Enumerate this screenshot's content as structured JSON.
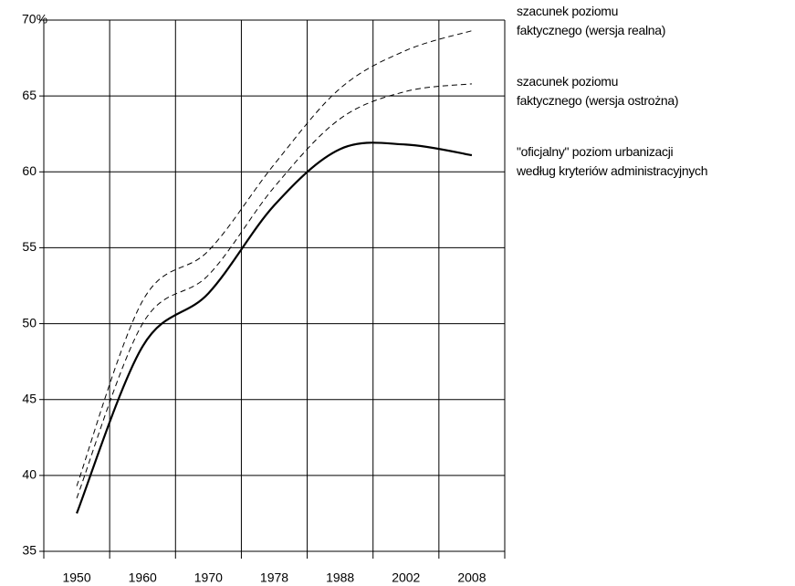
{
  "chart_data": {
    "type": "line",
    "categories": [
      "1950",
      "1960",
      "1970",
      "1978",
      "1988",
      "2002",
      "2008"
    ],
    "series": [
      {
        "name": "szacunek poziomu\nfaktycznego (wersja realna)",
        "color": "#000000",
        "style": "dashed",
        "values": [
          39.3,
          51.5,
          54.8,
          60.5,
          65.5,
          68.0,
          69.3
        ]
      },
      {
        "name": "szacunek poziomu\nfaktycznego (wersja ostrożna)",
        "color": "#000000",
        "style": "dashed",
        "values": [
          38.5,
          50.0,
          53.2,
          59.0,
          63.5,
          65.3,
          65.8
        ]
      },
      {
        "name": "\"oficjalny\" poziom urbanizacji\nwedług kryteriów administracyjnych",
        "color": "#000000",
        "style": "solid",
        "values": [
          37.5,
          48.5,
          52.0,
          57.8,
          61.5,
          61.8,
          61.1
        ]
      }
    ],
    "ylim": [
      35,
      70
    ],
    "yticks": [
      35,
      40,
      45,
      50,
      55,
      60,
      65,
      {
        "value": 70,
        "label": "70%"
      }
    ],
    "grid": true
  }
}
